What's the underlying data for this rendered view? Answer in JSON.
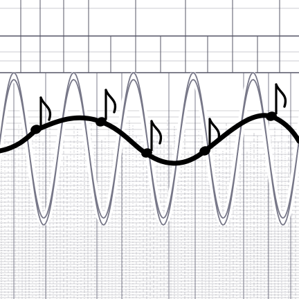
{
  "palette": {
    "background": "#ffffff",
    "grid": "#555566",
    "texture": "#8c8c99",
    "wave_outline": "#777788",
    "melody": "#000000"
  },
  "icons": [
    "eighth-note-icon"
  ],
  "artwork": {
    "note_count": 5,
    "wave_peak_count": 5
  }
}
